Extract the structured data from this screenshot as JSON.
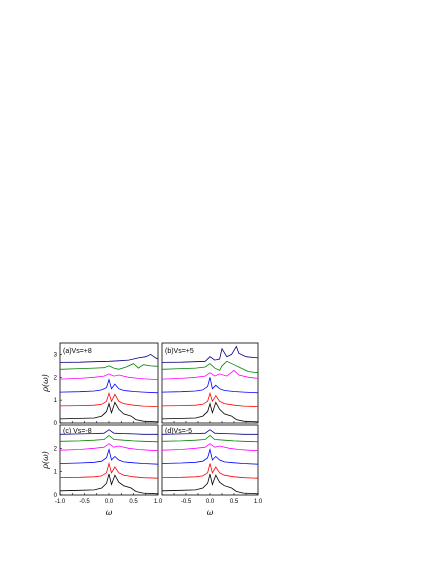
{
  "chart_data": [
    {
      "type": "line",
      "panel": "a",
      "label": "(a)Vs=+8",
      "xlim": [
        -1.0,
        1.0
      ],
      "ylim": [
        0,
        3.5
      ],
      "xticks": [],
      "yticks": [
        "0",
        "1",
        "2",
        "3"
      ],
      "ylabel": "ρ(ω)",
      "xlabel": "",
      "series": [
        {
          "color": "#000000",
          "x": [
            -1.0,
            -0.6,
            -0.3,
            -0.15,
            -0.05,
            0.0,
            0.05,
            0.12,
            0.2,
            0.3,
            0.45,
            0.55,
            0.7,
            1.0
          ],
          "y": [
            0.18,
            0.2,
            0.22,
            0.3,
            0.5,
            0.85,
            0.45,
            0.9,
            0.6,
            0.4,
            0.3,
            0.15,
            0.08,
            0.05
          ]
        },
        {
          "color": "#ff0000",
          "x": [
            -1.0,
            -0.6,
            -0.3,
            -0.15,
            -0.05,
            0.0,
            0.05,
            0.12,
            0.2,
            0.3,
            0.5,
            0.7,
            1.0
          ],
          "y": [
            0.75,
            0.76,
            0.78,
            0.82,
            0.95,
            1.3,
            0.95,
            1.25,
            0.95,
            0.85,
            0.78,
            0.74,
            0.72
          ]
        },
        {
          "color": "#0000ff",
          "x": [
            -1.0,
            -0.6,
            -0.3,
            -0.15,
            -0.05,
            0.0,
            0.05,
            0.12,
            0.2,
            0.3,
            0.5,
            0.7,
            1.0
          ],
          "y": [
            1.35,
            1.37,
            1.4,
            1.45,
            1.55,
            1.9,
            1.5,
            1.7,
            1.5,
            1.42,
            1.38,
            1.35,
            1.32
          ]
        },
        {
          "color": "#ff00ff",
          "x": [
            -1.0,
            -0.6,
            -0.3,
            -0.1,
            0.0,
            0.1,
            0.2,
            0.4,
            0.6,
            0.8,
            1.0
          ],
          "y": [
            1.92,
            1.95,
            2.0,
            2.05,
            2.15,
            2.05,
            2.1,
            2.0,
            1.95,
            1.92,
            1.9
          ]
        },
        {
          "color": "#008000",
          "x": [
            -1.0,
            -0.6,
            -0.3,
            -0.1,
            0.0,
            0.1,
            0.2,
            0.35,
            0.5,
            0.6,
            0.7,
            0.85,
            1.0
          ],
          "y": [
            2.35,
            2.38,
            2.4,
            2.42,
            2.5,
            2.4,
            2.35,
            2.45,
            2.6,
            2.4,
            2.55,
            2.5,
            2.48
          ]
        },
        {
          "color": "#000080",
          "x": [
            -1.0,
            -0.6,
            -0.3,
            0.0,
            0.2,
            0.4,
            0.6,
            0.75,
            0.85,
            0.95,
            1.0
          ],
          "y": [
            2.65,
            2.66,
            2.68,
            2.7,
            2.72,
            2.75,
            2.85,
            2.9,
            3.0,
            2.85,
            2.8
          ]
        }
      ]
    },
    {
      "type": "line",
      "panel": "b",
      "label": "(b)Vs=+5",
      "xlim": [
        -1.0,
        1.0
      ],
      "ylim": [
        0,
        3.5
      ],
      "xticks": [],
      "yticks": [],
      "xlabel": "",
      "ylabel": "",
      "series": [
        {
          "color": "#000000",
          "x": [
            -1.0,
            -0.6,
            -0.3,
            -0.15,
            -0.05,
            0.0,
            0.05,
            0.12,
            0.2,
            0.3,
            0.45,
            0.55,
            0.7,
            1.0
          ],
          "y": [
            0.18,
            0.2,
            0.22,
            0.3,
            0.5,
            0.85,
            0.45,
            0.9,
            0.6,
            0.4,
            0.3,
            0.15,
            0.08,
            0.05
          ]
        },
        {
          "color": "#ff0000",
          "x": [
            -1.0,
            -0.6,
            -0.3,
            -0.15,
            -0.05,
            0.0,
            0.05,
            0.12,
            0.2,
            0.3,
            0.5,
            0.7,
            1.0
          ],
          "y": [
            0.75,
            0.76,
            0.78,
            0.82,
            0.95,
            1.3,
            0.95,
            1.2,
            0.95,
            0.85,
            0.78,
            0.74,
            0.72
          ]
        },
        {
          "color": "#0000ff",
          "x": [
            -1.0,
            -0.6,
            -0.3,
            -0.15,
            -0.05,
            0.0,
            0.05,
            0.12,
            0.2,
            0.3,
            0.5,
            0.7,
            1.0
          ],
          "y": [
            1.35,
            1.37,
            1.4,
            1.45,
            1.6,
            2.0,
            1.5,
            1.65,
            1.5,
            1.42,
            1.38,
            1.35,
            1.32
          ]
        },
        {
          "color": "#ff00ff",
          "x": [
            -1.0,
            -0.6,
            -0.3,
            -0.1,
            0.0,
            0.1,
            0.2,
            0.35,
            0.5,
            0.6,
            0.8,
            1.0
          ],
          "y": [
            1.92,
            1.95,
            2.0,
            2.05,
            2.2,
            2.05,
            2.15,
            2.05,
            2.3,
            2.1,
            2.0,
            1.95
          ]
        },
        {
          "color": "#008000",
          "x": [
            -1.0,
            -0.6,
            -0.3,
            -0.1,
            0.0,
            0.1,
            0.2,
            0.25,
            0.35,
            0.5,
            0.6,
            0.8,
            1.0
          ],
          "y": [
            2.35,
            2.38,
            2.4,
            2.45,
            2.6,
            2.4,
            2.3,
            2.5,
            2.7,
            2.55,
            2.45,
            2.25,
            2.2
          ]
        },
        {
          "color": "#000080",
          "x": [
            -1.0,
            -0.6,
            -0.3,
            -0.1,
            0.0,
            0.1,
            0.2,
            0.25,
            0.35,
            0.45,
            0.55,
            0.6,
            0.75,
            1.0
          ],
          "y": [
            2.65,
            2.66,
            2.68,
            2.7,
            2.9,
            2.75,
            2.8,
            3.25,
            2.9,
            3.0,
            3.35,
            3.05,
            2.9,
            2.85
          ]
        }
      ]
    },
    {
      "type": "line",
      "panel": "c",
      "label": "(c)  Vs=-8",
      "xlim": [
        -1.0,
        1.0
      ],
      "ylim": [
        0,
        3.0
      ],
      "xticks": [
        "-1.0",
        "-0.5",
        "0.0",
        "0.5",
        "1.0"
      ],
      "yticks": [
        "0",
        "1",
        "2"
      ],
      "ylabel": "ρ(ω)",
      "xlabel": "ω",
      "series": [
        {
          "color": "#000000",
          "x": [
            -1.0,
            -0.6,
            -0.3,
            -0.15,
            -0.05,
            0.0,
            0.05,
            0.12,
            0.2,
            0.3,
            0.45,
            0.55,
            0.7,
            1.0
          ],
          "y": [
            0.18,
            0.2,
            0.22,
            0.3,
            0.5,
            0.9,
            0.45,
            0.85,
            0.55,
            0.4,
            0.3,
            0.15,
            0.08,
            0.05
          ]
        },
        {
          "color": "#ff0000",
          "x": [
            -1.0,
            -0.6,
            -0.3,
            -0.15,
            -0.05,
            0.0,
            0.05,
            0.12,
            0.2,
            0.3,
            0.5,
            0.7,
            1.0
          ],
          "y": [
            0.75,
            0.76,
            0.78,
            0.82,
            0.95,
            1.35,
            0.95,
            1.2,
            0.95,
            0.85,
            0.78,
            0.74,
            0.72
          ]
        },
        {
          "color": "#0000ff",
          "x": [
            -1.0,
            -0.6,
            -0.3,
            -0.15,
            -0.05,
            0.0,
            0.05,
            0.12,
            0.2,
            0.3,
            0.5,
            0.7,
            1.0
          ],
          "y": [
            1.35,
            1.37,
            1.4,
            1.45,
            1.6,
            1.95,
            1.5,
            1.65,
            1.5,
            1.42,
            1.38,
            1.35,
            1.32
          ]
        },
        {
          "color": "#ff00ff",
          "x": [
            -1.0,
            -0.6,
            -0.3,
            -0.1,
            0.0,
            0.1,
            0.2,
            0.4,
            0.6,
            0.8,
            1.0
          ],
          "y": [
            1.92,
            1.95,
            2.0,
            2.05,
            2.2,
            2.05,
            2.1,
            2.0,
            1.95,
            1.92,
            1.9
          ]
        },
        {
          "color": "#008000",
          "x": [
            -1.0,
            -0.6,
            -0.3,
            -0.1,
            0.0,
            0.1,
            0.3,
            0.5,
            0.7,
            1.0
          ],
          "y": [
            2.3,
            2.32,
            2.35,
            2.38,
            2.55,
            2.38,
            2.35,
            2.32,
            2.3,
            2.28
          ]
        },
        {
          "color": "#000080",
          "x": [
            -1.0,
            -0.6,
            -0.3,
            -0.1,
            0.0,
            0.1,
            0.3,
            0.5,
            0.7,
            1.0
          ],
          "y": [
            2.6,
            2.62,
            2.63,
            2.65,
            2.8,
            2.65,
            2.63,
            2.62,
            2.6,
            2.6
          ]
        }
      ]
    },
    {
      "type": "line",
      "panel": "d",
      "label": "(d)Vs=-5",
      "xlim": [
        -1.0,
        1.0
      ],
      "ylim": [
        0,
        3.0
      ],
      "xticks": [
        "-0.5",
        "0.0",
        "0.5",
        "1.0"
      ],
      "yticks": [],
      "xlabel": "ω",
      "ylabel": "",
      "series": [
        {
          "color": "#000000",
          "x": [
            -1.0,
            -0.6,
            -0.3,
            -0.15,
            -0.05,
            0.0,
            0.05,
            0.12,
            0.2,
            0.3,
            0.45,
            0.55,
            0.7,
            1.0
          ],
          "y": [
            0.18,
            0.2,
            0.22,
            0.3,
            0.5,
            0.9,
            0.45,
            0.85,
            0.55,
            0.4,
            0.3,
            0.15,
            0.08,
            0.05
          ]
        },
        {
          "color": "#ff0000",
          "x": [
            -1.0,
            -0.6,
            -0.3,
            -0.15,
            -0.05,
            0.0,
            0.05,
            0.12,
            0.2,
            0.3,
            0.5,
            0.7,
            1.0
          ],
          "y": [
            0.75,
            0.76,
            0.78,
            0.82,
            0.95,
            1.35,
            0.95,
            1.2,
            0.95,
            0.85,
            0.78,
            0.74,
            0.72
          ]
        },
        {
          "color": "#0000ff",
          "x": [
            -1.0,
            -0.6,
            -0.3,
            -0.15,
            -0.05,
            0.0,
            0.05,
            0.12,
            0.2,
            0.3,
            0.5,
            0.7,
            1.0
          ],
          "y": [
            1.35,
            1.37,
            1.4,
            1.45,
            1.6,
            1.95,
            1.5,
            1.65,
            1.5,
            1.42,
            1.38,
            1.35,
            1.32
          ]
        },
        {
          "color": "#ff00ff",
          "x": [
            -1.0,
            -0.6,
            -0.3,
            -0.1,
            0.0,
            0.1,
            0.2,
            0.4,
            0.6,
            0.8,
            1.0
          ],
          "y": [
            1.92,
            1.95,
            2.0,
            2.05,
            2.2,
            2.05,
            2.1,
            2.0,
            1.95,
            1.92,
            1.9
          ]
        },
        {
          "color": "#008000",
          "x": [
            -1.0,
            -0.6,
            -0.3,
            -0.1,
            0.0,
            0.1,
            0.3,
            0.5,
            0.7,
            1.0
          ],
          "y": [
            2.3,
            2.32,
            2.35,
            2.38,
            2.55,
            2.38,
            2.35,
            2.32,
            2.3,
            2.28
          ]
        },
        {
          "color": "#000080",
          "x": [
            -1.0,
            -0.6,
            -0.3,
            -0.1,
            0.0,
            0.1,
            0.3,
            0.5,
            0.7,
            1.0
          ],
          "y": [
            2.6,
            2.62,
            2.63,
            2.65,
            2.8,
            2.65,
            2.63,
            2.62,
            2.6,
            2.6
          ]
        }
      ]
    }
  ]
}
